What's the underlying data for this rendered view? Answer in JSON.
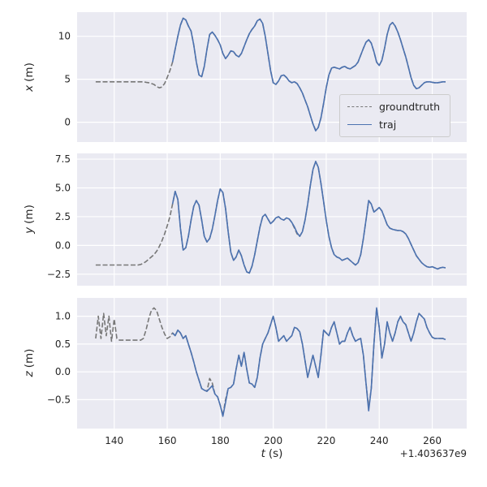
{
  "figure": {
    "xlabel_var": "t",
    "xlabel_unit": "(s)",
    "offset_text": "+1.403637e9",
    "colors": {
      "panel_bg": "#eaeaf2",
      "grid": "#ffffff",
      "groundtruth": "#777777",
      "traj": "#4c72b0",
      "text": "#262626"
    },
    "legend": {
      "entries": [
        {
          "label": "groundtruth",
          "series": "groundtruth",
          "style": "dashed"
        },
        {
          "label": "traj",
          "series": "traj",
          "style": "solid"
        }
      ]
    }
  },
  "chart_data": [
    {
      "type": "line",
      "title": "",
      "ylabel_var": "x",
      "ylabel_unit": "(m)",
      "xlim": [
        126,
        273
      ],
      "ylim": [
        -2.3,
        12.8
      ],
      "grid": true,
      "legend_position": "lower right of first panel",
      "xticks": [
        {
          "v": 140,
          "label": "140"
        },
        {
          "v": 160,
          "label": "160"
        },
        {
          "v": 180,
          "label": "180"
        },
        {
          "v": 200,
          "label": "200"
        },
        {
          "v": 220,
          "label": "220"
        },
        {
          "v": 240,
          "label": "240"
        },
        {
          "v": 260,
          "label": "260"
        }
      ],
      "yticks": [
        {
          "v": 0,
          "label": "0"
        },
        {
          "v": 5,
          "label": "5"
        },
        {
          "v": 10,
          "label": "10"
        }
      ],
      "series": [
        {
          "name": "groundtruth",
          "style": "dashed",
          "t0": 133,
          "dt": 1,
          "values": [
            4.7,
            4.7,
            4.7,
            4.7,
            4.7,
            4.7,
            4.7,
            4.7,
            4.7,
            4.7,
            4.7,
            4.7,
            4.7,
            4.7,
            4.7,
            4.7,
            4.7,
            4.7,
            4.7,
            4.65,
            4.6,
            4.5,
            4.4,
            4.15,
            4.0,
            4.1,
            4.5,
            5.2,
            6.0,
            7.0,
            8.5,
            10.0,
            11.3,
            12.1,
            11.9,
            11.2,
            10.6,
            9.0,
            7.0,
            5.5,
            5.3,
            6.5,
            8.5,
            10.2,
            10.5,
            10.1,
            9.6,
            9.0,
            8.0,
            7.4,
            7.8,
            8.3,
            8.2,
            7.8,
            7.6,
            8.0,
            8.8,
            9.6,
            10.3,
            10.8,
            11.2,
            11.8,
            12.0,
            11.5,
            10.0,
            8.0,
            6.0,
            4.6,
            4.4,
            4.8,
            5.4,
            5.5,
            5.2,
            4.8,
            4.6,
            4.7,
            4.5,
            4.0,
            3.4,
            2.6,
            1.8,
            0.8,
            -0.2,
            -0.9,
            -0.6,
            0.5,
            2.2,
            4.0,
            5.5,
            6.3,
            6.4,
            6.3,
            6.2,
            6.4,
            6.5,
            6.3,
            6.2,
            6.4,
            6.6,
            7.0,
            7.8,
            8.6,
            9.3,
            9.6,
            9.2,
            8.2,
            7.0,
            6.6,
            7.2,
            8.6,
            10.2,
            11.3,
            11.6,
            11.2,
            10.5,
            9.6,
            8.6,
            7.6,
            6.4,
            5.2,
            4.3,
            3.9,
            4.0,
            4.3,
            4.6,
            4.7,
            4.7,
            4.65,
            4.6,
            4.6,
            4.65,
            4.7,
            4.7
          ]
        },
        {
          "name": "traj",
          "style": "solid",
          "t0": 162,
          "dt": 1,
          "values": [
            7.0,
            8.5,
            10.0,
            11.3,
            12.1,
            11.9,
            11.2,
            10.6,
            9.0,
            7.0,
            5.5,
            5.3,
            6.5,
            8.5,
            10.2,
            10.5,
            10.1,
            9.6,
            9.0,
            8.0,
            7.4,
            7.8,
            8.3,
            8.2,
            7.8,
            7.6,
            8.0,
            8.8,
            9.6,
            10.3,
            10.8,
            11.2,
            11.8,
            12.0,
            11.5,
            10.0,
            8.0,
            6.0,
            4.6,
            4.4,
            4.8,
            5.4,
            5.5,
            5.2,
            4.8,
            4.6,
            4.7,
            4.5,
            4.0,
            3.4,
            2.6,
            1.8,
            0.8,
            -0.2,
            -1.0,
            -0.6,
            0.5,
            2.2,
            4.0,
            5.5,
            6.3,
            6.4,
            6.3,
            6.2,
            6.4,
            6.5,
            6.3,
            6.2,
            6.4,
            6.6,
            7.0,
            7.8,
            8.6,
            9.3,
            9.6,
            9.2,
            8.2,
            7.0,
            6.6,
            7.2,
            8.6,
            10.2,
            11.3,
            11.6,
            11.2,
            10.5,
            9.6,
            8.6,
            7.6,
            6.4,
            5.2,
            4.3,
            3.9,
            4.0,
            4.3,
            4.6,
            4.7,
            4.7,
            4.65,
            4.6,
            4.6,
            4.65,
            4.7,
            4.7
          ]
        }
      ]
    },
    {
      "type": "line",
      "title": "",
      "ylabel_var": "y",
      "ylabel_unit": "(m)",
      "xlim": [
        126,
        273
      ],
      "ylim": [
        -3.5,
        8.0
      ],
      "grid": true,
      "xticks": [
        {
          "v": 140,
          "label": "140"
        },
        {
          "v": 160,
          "label": "160"
        },
        {
          "v": 180,
          "label": "180"
        },
        {
          "v": 200,
          "label": "200"
        },
        {
          "v": 220,
          "label": "220"
        },
        {
          "v": 240,
          "label": "240"
        },
        {
          "v": 260,
          "label": "260"
        }
      ],
      "yticks": [
        {
          "v": -2.5,
          "label": "−2.5"
        },
        {
          "v": 0,
          "label": "0.0"
        },
        {
          "v": 2.5,
          "label": "2.5"
        },
        {
          "v": 5,
          "label": "5.0"
        },
        {
          "v": 7.5,
          "label": "7.5"
        }
      ],
      "series": [
        {
          "name": "groundtruth",
          "style": "dashed",
          "t0": 133,
          "dt": 1,
          "values": [
            -1.7,
            -1.7,
            -1.7,
            -1.7,
            -1.7,
            -1.7,
            -1.7,
            -1.7,
            -1.7,
            -1.7,
            -1.7,
            -1.7,
            -1.7,
            -1.7,
            -1.7,
            -1.7,
            -1.7,
            -1.65,
            -1.55,
            -1.4,
            -1.2,
            -1.0,
            -0.8,
            -0.5,
            -0.1,
            0.4,
            1.0,
            1.7,
            2.5,
            3.6,
            4.7,
            4.0,
            1.5,
            -0.4,
            -0.2,
            0.8,
            2.2,
            3.4,
            3.9,
            3.5,
            2.2,
            0.8,
            0.3,
            0.6,
            1.4,
            2.6,
            3.9,
            4.9,
            4.6,
            3.2,
            1.2,
            -0.6,
            -1.3,
            -1.0,
            -0.4,
            -0.9,
            -1.7,
            -2.3,
            -2.4,
            -1.8,
            -0.8,
            0.4,
            1.6,
            2.5,
            2.7,
            2.3,
            1.9,
            2.1,
            2.4,
            2.5,
            2.3,
            2.2,
            2.4,
            2.3,
            2.0,
            1.5,
            1.0,
            0.8,
            1.2,
            2.2,
            3.6,
            5.2,
            6.6,
            7.3,
            6.8,
            5.4,
            3.8,
            2.2,
            0.8,
            -0.2,
            -0.8,
            -1.0,
            -1.1,
            -1.3,
            -1.2,
            -1.1,
            -1.3,
            -1.5,
            -1.7,
            -1.5,
            -0.8,
            0.6,
            2.2,
            3.9,
            3.6,
            2.9,
            3.1,
            3.3,
            3.0,
            2.4,
            1.8,
            1.5,
            1.4,
            1.35,
            1.3,
            1.3,
            1.2,
            1.0,
            0.6,
            0.1,
            -0.4,
            -0.9,
            -1.2,
            -1.5,
            -1.7,
            -1.85,
            -1.9,
            -1.85,
            -1.95,
            -2.05,
            -1.95,
            -1.9,
            -1.95
          ]
        },
        {
          "name": "traj",
          "style": "solid",
          "t0": 162,
          "dt": 1,
          "values": [
            3.6,
            4.7,
            4.0,
            1.5,
            -0.4,
            -0.2,
            0.8,
            2.2,
            3.4,
            3.9,
            3.5,
            2.2,
            0.8,
            0.3,
            0.6,
            1.4,
            2.6,
            3.9,
            4.9,
            4.6,
            3.2,
            1.2,
            -0.6,
            -1.3,
            -1.0,
            -0.4,
            -0.9,
            -1.7,
            -2.3,
            -2.4,
            -1.8,
            -0.8,
            0.4,
            1.6,
            2.5,
            2.7,
            2.3,
            1.9,
            2.1,
            2.4,
            2.5,
            2.3,
            2.2,
            2.4,
            2.3,
            2.0,
            1.6,
            1.1,
            0.8,
            1.2,
            2.2,
            3.6,
            5.2,
            6.6,
            7.3,
            6.8,
            5.4,
            3.8,
            2.2,
            0.8,
            -0.2,
            -0.8,
            -1.0,
            -1.1,
            -1.3,
            -1.2,
            -1.1,
            -1.3,
            -1.5,
            -1.7,
            -1.5,
            -0.8,
            0.6,
            2.2,
            3.9,
            3.6,
            2.9,
            3.1,
            3.3,
            3.0,
            2.4,
            1.8,
            1.5,
            1.4,
            1.35,
            1.3,
            1.3,
            1.2,
            1.0,
            0.6,
            0.1,
            -0.4,
            -0.9,
            -1.2,
            -1.5,
            -1.7,
            -1.85,
            -1.9,
            -1.85,
            -1.95,
            -2.05,
            -1.95,
            -1.9,
            -1.95
          ]
        }
      ]
    },
    {
      "type": "line",
      "title": "",
      "ylabel_var": "z",
      "ylabel_unit": "(m)",
      "xlabel_var": "t",
      "xlabel_unit": "(s)",
      "x_offset_text": "+1.403637e9",
      "xlim": [
        126,
        273
      ],
      "ylim": [
        -1.02,
        1.33
      ],
      "grid": true,
      "xticks": [
        {
          "v": 140,
          "label": "140"
        },
        {
          "v": 160,
          "label": "160"
        },
        {
          "v": 180,
          "label": "180"
        },
        {
          "v": 200,
          "label": "200"
        },
        {
          "v": 220,
          "label": "220"
        },
        {
          "v": 240,
          "label": "240"
        },
        {
          "v": 260,
          "label": "260"
        }
      ],
      "yticks": [
        {
          "v": -0.5,
          "label": "−0.5"
        },
        {
          "v": 0,
          "label": "0.0"
        },
        {
          "v": 0.5,
          "label": "0.5"
        },
        {
          "v": 1,
          "label": "1.0"
        }
      ],
      "series": [
        {
          "name": "groundtruth",
          "style": "dashed",
          "t0": 133,
          "dt": 1,
          "values": [
            0.6,
            1.0,
            0.6,
            1.05,
            0.65,
            1.0,
            0.55,
            0.95,
            0.6,
            0.57,
            0.57,
            0.57,
            0.57,
            0.57,
            0.57,
            0.57,
            0.57,
            0.57,
            0.6,
            0.75,
            0.95,
            1.1,
            1.15,
            1.1,
            0.95,
            0.8,
            0.68,
            0.6,
            0.63,
            0.7,
            0.65,
            0.75,
            0.7,
            0.6,
            0.65,
            0.5,
            0.35,
            0.18,
            0.0,
            -0.15,
            -0.3,
            -0.33,
            -0.35,
            -0.12,
            -0.2,
            -0.4,
            -0.45,
            -0.6,
            -0.78,
            -0.5,
            -0.3,
            -0.28,
            -0.22,
            0.05,
            0.3,
            0.1,
            0.35,
            0.05,
            -0.2,
            -0.22,
            -0.28,
            -0.1,
            0.25,
            0.5,
            0.6,
            0.7,
            0.85,
            1.0,
            0.8,
            0.55,
            0.6,
            0.65,
            0.55,
            0.6,
            0.65,
            0.8,
            0.78,
            0.72,
            0.5,
            0.2,
            -0.1,
            0.1,
            0.3,
            0.1,
            -0.1,
            0.3,
            0.75,
            0.7,
            0.65,
            0.8,
            0.9,
            0.7,
            0.5,
            0.55,
            0.55,
            0.7,
            0.8,
            0.65,
            0.55,
            0.58,
            0.6,
            0.3,
            -0.2,
            -0.65,
            -0.3,
            0.5,
            1.15,
            0.8,
            0.25,
            0.5,
            0.9,
            0.7,
            0.55,
            0.7,
            0.9,
            1.0,
            0.9,
            0.85,
            0.7,
            0.55,
            0.7,
            0.9,
            1.05,
            1.0,
            0.95,
            0.8,
            0.7,
            0.62,
            0.6,
            0.6,
            0.6,
            0.6,
            0.58
          ]
        },
        {
          "name": "traj",
          "style": "solid",
          "t0": 162,
          "dt": 1,
          "values": [
            0.7,
            0.65,
            0.75,
            0.7,
            0.6,
            0.65,
            0.5,
            0.35,
            0.18,
            0.0,
            -0.15,
            -0.3,
            -0.33,
            -0.35,
            -0.3,
            -0.25,
            -0.4,
            -0.45,
            -0.6,
            -0.8,
            -0.55,
            -0.3,
            -0.28,
            -0.22,
            0.05,
            0.3,
            0.1,
            0.35,
            0.05,
            -0.2,
            -0.22,
            -0.28,
            -0.1,
            0.25,
            0.5,
            0.6,
            0.7,
            0.85,
            1.0,
            0.8,
            0.55,
            0.6,
            0.65,
            0.55,
            0.6,
            0.65,
            0.8,
            0.78,
            0.72,
            0.5,
            0.2,
            -0.1,
            0.1,
            0.3,
            0.1,
            -0.1,
            0.3,
            0.75,
            0.7,
            0.65,
            0.8,
            0.9,
            0.7,
            0.5,
            0.55,
            0.55,
            0.7,
            0.8,
            0.65,
            0.55,
            0.58,
            0.6,
            0.3,
            -0.2,
            -0.7,
            -0.3,
            0.5,
            1.15,
            0.8,
            0.25,
            0.5,
            0.9,
            0.7,
            0.55,
            0.7,
            0.9,
            1.0,
            0.9,
            0.85,
            0.7,
            0.55,
            0.7,
            0.9,
            1.05,
            1.0,
            0.95,
            0.8,
            0.7,
            0.62,
            0.6,
            0.6,
            0.6,
            0.6,
            0.58
          ]
        }
      ]
    }
  ]
}
